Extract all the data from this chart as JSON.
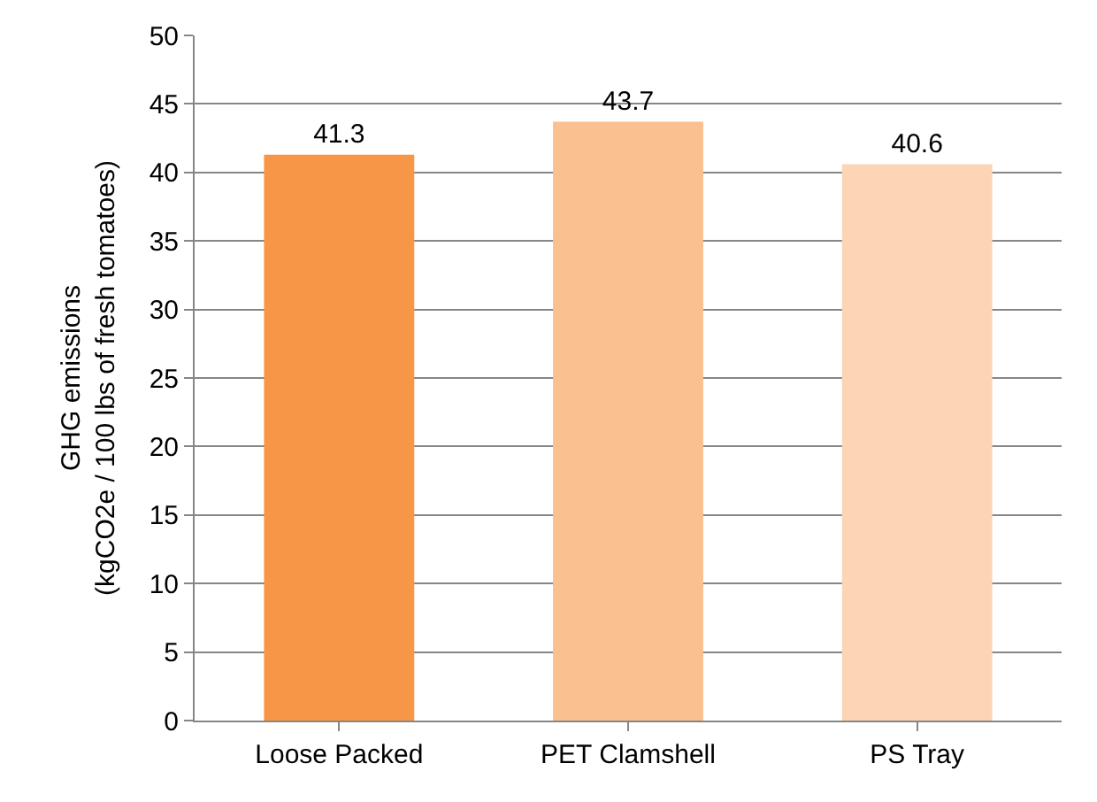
{
  "chart_data": {
    "type": "bar",
    "ylabel": "GHG emissions\n(kgCO2e / 100 lbs of fresh tomatoes)",
    "categories": [
      "Loose Packed",
      "PET Clamshell",
      "PS Tray"
    ],
    "values": [
      41.3,
      43.7,
      40.6
    ],
    "colors": [
      "#f79646",
      "#fac090",
      "#fcd5b5"
    ],
    "ylim": [
      0,
      50
    ],
    "yticks": [
      0,
      5,
      10,
      15,
      20,
      25,
      30,
      35,
      40,
      45,
      50
    ],
    "grid": "y",
    "data_labels": true
  }
}
